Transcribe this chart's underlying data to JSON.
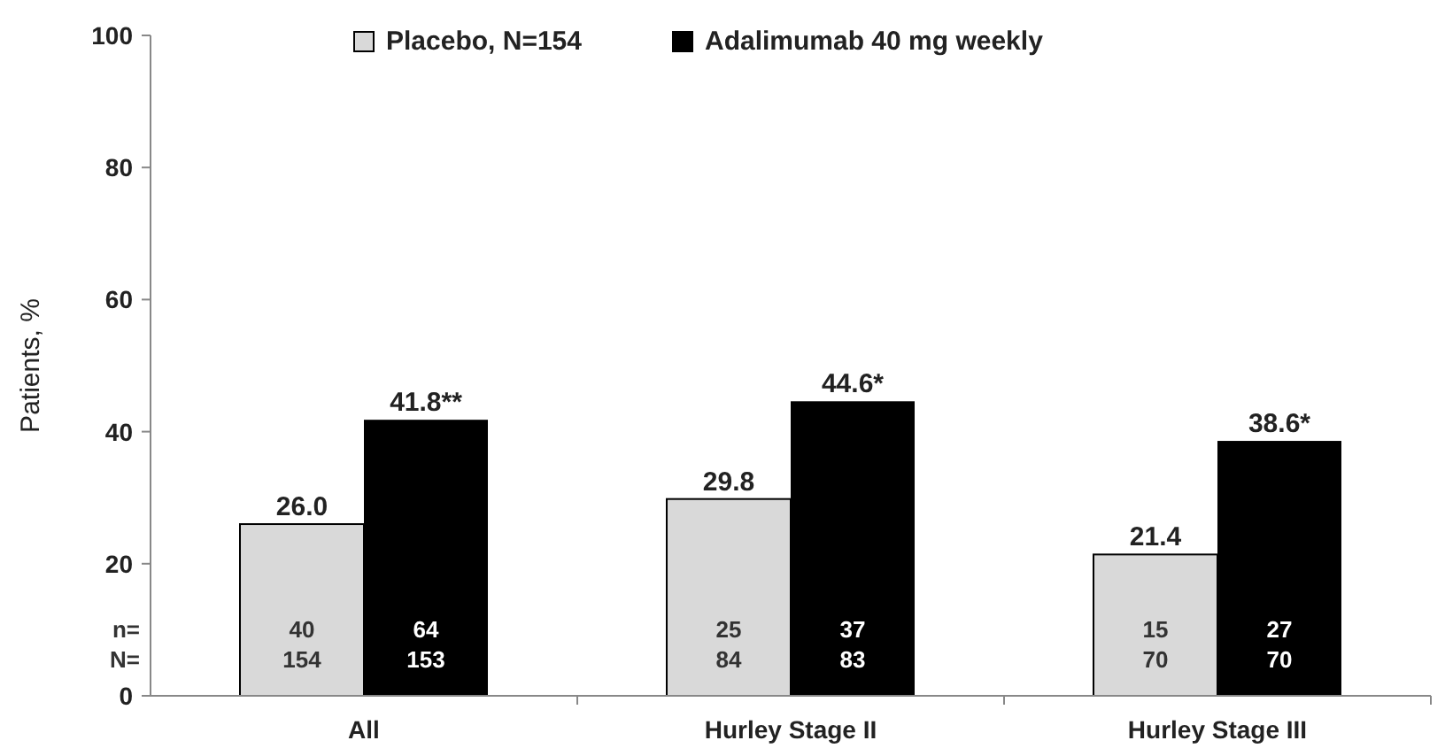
{
  "chart_data": {
    "type": "bar",
    "ylabel": "Patients, %",
    "categories": [
      "All",
      "Hurley Stage II",
      "Hurley Stage III"
    ],
    "series": [
      {
        "name": "Placebo, N=154",
        "color": "#d9d9d9",
        "values": [
          26.0,
          29.8,
          21.4
        ],
        "value_labels": [
          "26.0",
          "29.8",
          "21.4"
        ]
      },
      {
        "name": "Adalimumab 40 mg weekly",
        "color": "#000000",
        "values": [
          41.8,
          44.6,
          38.6
        ],
        "value_labels": [
          "41.8**",
          "44.6*",
          "38.6*"
        ]
      }
    ],
    "ylim": [
      0,
      100
    ],
    "yticks": [
      0,
      20,
      40,
      60,
      80,
      100
    ],
    "grid": false,
    "legend": "top",
    "annotations": [
      "n=",
      "N=",
      "40",
      "154",
      "64",
      "153",
      "25",
      "84",
      "37",
      "83",
      "15",
      "70",
      "27",
      "70"
    ]
  }
}
